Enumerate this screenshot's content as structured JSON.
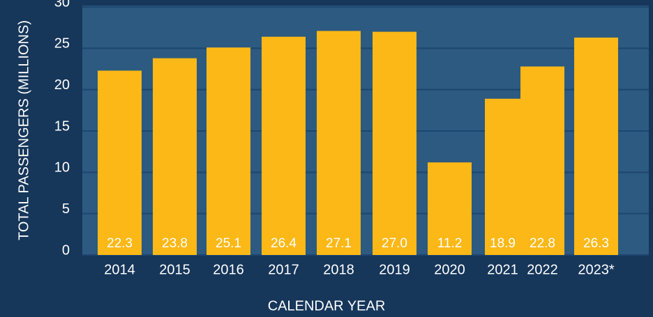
{
  "chart_data": {
    "type": "bar",
    "x_label": "CALENDAR YEAR",
    "y_label": "TOTAL PASSENGERS (MILLIONS)",
    "categories": [
      "2014",
      "2015",
      "2016",
      "2017",
      "2018",
      "2019",
      "2020",
      "2021",
      "2022",
      "2023*"
    ],
    "values": [
      22.3,
      23.8,
      25.1,
      26.4,
      27.1,
      27.0,
      11.2,
      18.9,
      22.8,
      26.3
    ],
    "value_labels": [
      "22.3",
      "23.8",
      "25.1",
      "26.4",
      "27.1",
      "27.0",
      "11.2",
      "18.9",
      "22.8",
      "26.3"
    ],
    "color": "#fbb817",
    "ylim": [
      0,
      30
    ],
    "yticks": [
      0,
      5,
      10,
      15,
      20,
      25,
      30
    ],
    "grid": true
  }
}
